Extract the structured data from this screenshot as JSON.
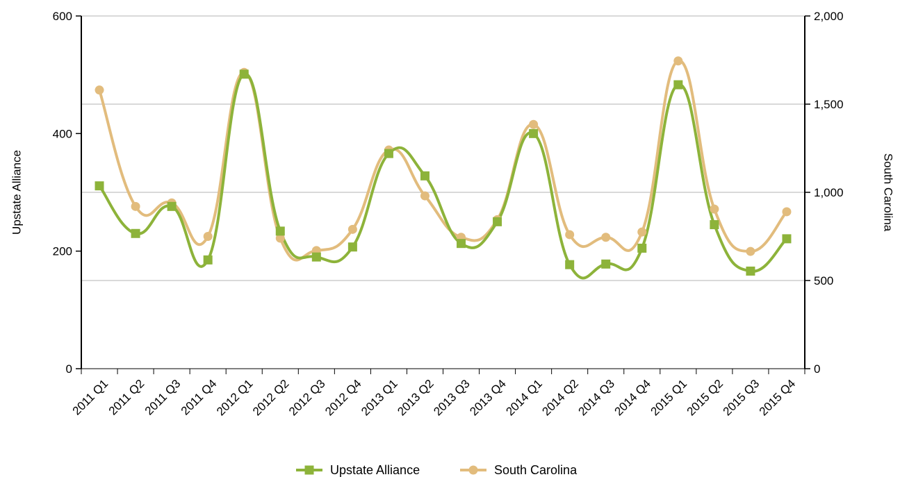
{
  "chart_data": {
    "type": "line",
    "title": "",
    "xlabel": "",
    "ylabel": "Upstate Alliance",
    "y2label": "South Carolina",
    "ylim": [
      0,
      600
    ],
    "y2lim": [
      0,
      2000
    ],
    "y_ticks": [
      "0",
      "200",
      "400",
      "600"
    ],
    "y2_ticks": [
      "0",
      "500",
      "1,000",
      "1,500",
      "2,000"
    ],
    "grid": "horizontal",
    "legend": "bottom",
    "smooth": true,
    "categories": [
      "2011 Q1",
      "2011 Q2",
      "2011 Q3",
      "2011 Q4",
      "2012 Q1",
      "2012 Q2",
      "2012 Q3",
      "2012 Q4",
      "2013 Q1",
      "2013 Q2",
      "2013 Q3",
      "2013 Q4",
      "2014 Q1",
      "2014 Q2",
      "2014 Q3",
      "2014 Q4",
      "2015 Q1",
      "2015 Q2",
      "2015 Q3",
      "2015 Q4"
    ],
    "series": [
      {
        "name": "Upstate Alliance",
        "axis": "left",
        "color": "#8db33a",
        "marker": "square",
        "values": [
          311,
          230,
          276,
          185,
          501,
          234,
          190,
          207,
          366,
          328,
          213,
          250,
          400,
          177,
          178,
          205,
          483,
          245,
          166,
          221
        ]
      },
      {
        "name": "South Carolina",
        "axis": "right",
        "color": "#e2bc7d",
        "marker": "circle",
        "values": [
          1580,
          920,
          940,
          750,
          1680,
          740,
          670,
          790,
          1240,
          980,
          745,
          845,
          1385,
          760,
          745,
          775,
          1745,
          905,
          665,
          890
        ]
      }
    ]
  }
}
